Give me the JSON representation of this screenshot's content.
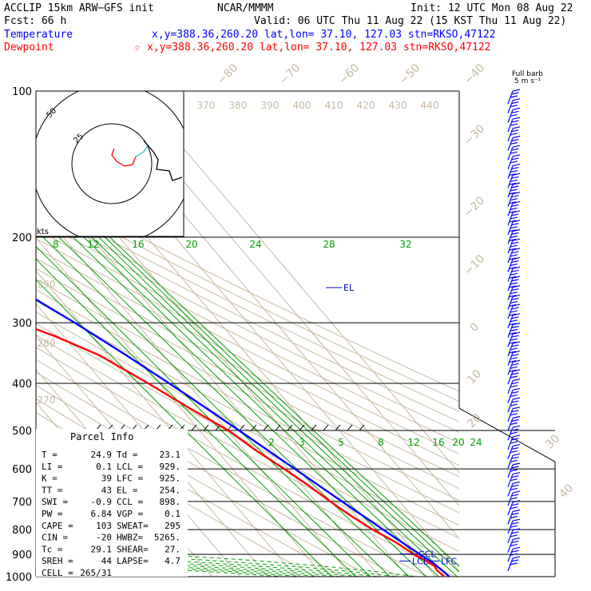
{
  "header": {
    "line1_left": "ACCLIP 15km ARW−GFS init",
    "line1_mid": "NCAR/MMMM",
    "line1_right": "Init: 12 UTC Mon 08 Aug 22",
    "line2_left": "Fcst:    66 h",
    "line2_right": "Valid: 06 UTC Thu 11 Aug 22 (15 KST Thu 11 Aug 22)",
    "temp_label": "Temperature",
    "temp_info": "x,y=388.36,260.20    lat,lon= 37.10, 127.03   stn=RKSO,47122",
    "dew_label": "Dewpoint",
    "dew_info": "x,y=388.36,260.20    lat,lon= 37.10, 127.03   stn=RKSO,47122",
    "dew_star": "☆"
  },
  "barb_key": {
    "line1": "Full barb",
    "line2": "5 m s⁻¹"
  },
  "colors": {
    "temperature": "#0000ff",
    "dewpoint": "#ff0000",
    "isotherm": "#c8b9a0",
    "mixing_ratio": "#00a000",
    "text": "#000000",
    "el_label": "#0000cc"
  },
  "chart_data": {
    "type": "line",
    "title": "Skew-T log-P",
    "ylabel": "Pressure (hPa)",
    "pressure_ticks": [
      "100",
      "200",
      "300",
      "400",
      "500",
      "600",
      "700",
      "800",
      "900",
      "1000"
    ],
    "pressure_levels": [
      100,
      200,
      300,
      400,
      500,
      600,
      700,
      800,
      900,
      1000
    ],
    "isotherm_labels": [
      "−80",
      "−70",
      "−60",
      "−50",
      "−40",
      "−30",
      "−20",
      "−10",
      "0",
      "10",
      "20",
      "30",
      "40"
    ],
    "theta_labels_top": [
      "370",
      "380",
      "390",
      "400",
      "410",
      "420",
      "430",
      "440"
    ],
    "theta_labels_left": [
      "290",
      "280",
      "270"
    ],
    "mixing_ratio_labels_upper": [
      "8",
      "12",
      "16",
      "20",
      "24",
      "28",
      "32"
    ],
    "mixing_ratio_labels_lower": [
      "2",
      "3",
      "5",
      "8",
      "12",
      "16",
      "20",
      "24"
    ],
    "series": [
      {
        "name": "Temperature",
        "pressure": [
          1000,
          970,
          950,
          925,
          900,
          850,
          800,
          750,
          700,
          650,
          600,
          550,
          500,
          450,
          400,
          350,
          300,
          275,
          250,
          225,
          200,
          175,
          150,
          135,
          125,
          115,
          100
        ],
        "values": [
          24.9,
          24.2,
          23.6,
          22.6,
          21.2,
          18.4,
          15.5,
          12.5,
          9.3,
          6.0,
          2.4,
          -1.6,
          -5.9,
          -10.8,
          -16.5,
          -23.4,
          -31.9,
          -37.3,
          -43.0,
          -48.6,
          -53.6,
          -58.3,
          -61.9,
          -62.6,
          -61.5,
          -59.4,
          -57.0
        ]
      },
      {
        "name": "Dewpoint",
        "pressure": [
          1000,
          970,
          950,
          925,
          900,
          850,
          800,
          750,
          700,
          650,
          600,
          550,
          500,
          450,
          400,
          350,
          320,
          300,
          275,
          250,
          225,
          200,
          175,
          150,
          135,
          120,
          110,
          100
        ],
        "values": [
          23.1,
          22.4,
          22.8,
          21.2,
          19.0,
          16.2,
          11.8,
          8.2,
          5.1,
          2.3,
          -1.4,
          -5.9,
          -9.7,
          -16.8,
          -24.0,
          -33.0,
          -43.0,
          -52.0,
          -53.0,
          -50.0,
          -55.0,
          -60.0,
          -66.0,
          -75.0,
          -80.0,
          -84.0,
          -84.0,
          -83.0
        ]
      }
    ],
    "annotations": [
      "EL",
      "CCL",
      "LCL",
      "LFC"
    ],
    "hodograph": {
      "ring_labels": [
        "50",
        "25"
      ],
      "unit": "kts"
    }
  },
  "parcel": {
    "title": "Parcel Info",
    "rows": [
      [
        "T  =",
        "24.9",
        "Td =",
        "23.1"
      ],
      [
        "LI =",
        "0.1",
        "LCL =",
        "929."
      ],
      [
        "K  =",
        "39",
        "LFC =",
        "925."
      ],
      [
        "TT =",
        "43",
        "EL =",
        "254."
      ],
      [
        "SWI =",
        "-0.9",
        "CCL =",
        "898."
      ],
      [
        "PW =",
        "6.84",
        "VGP =",
        "0.1"
      ],
      [
        "CAPE =",
        "103",
        "SWEAT=",
        "295"
      ],
      [
        "CIN =",
        "-20",
        "HWBZ=",
        "5265."
      ],
      [
        "Tc =",
        "29.1",
        "SHEAR=",
        "27."
      ],
      [
        "SREH =",
        "44",
        "LAPSE=",
        "4.7"
      ],
      [
        "CELL =",
        "265/31",
        "",
        ""
      ]
    ]
  }
}
